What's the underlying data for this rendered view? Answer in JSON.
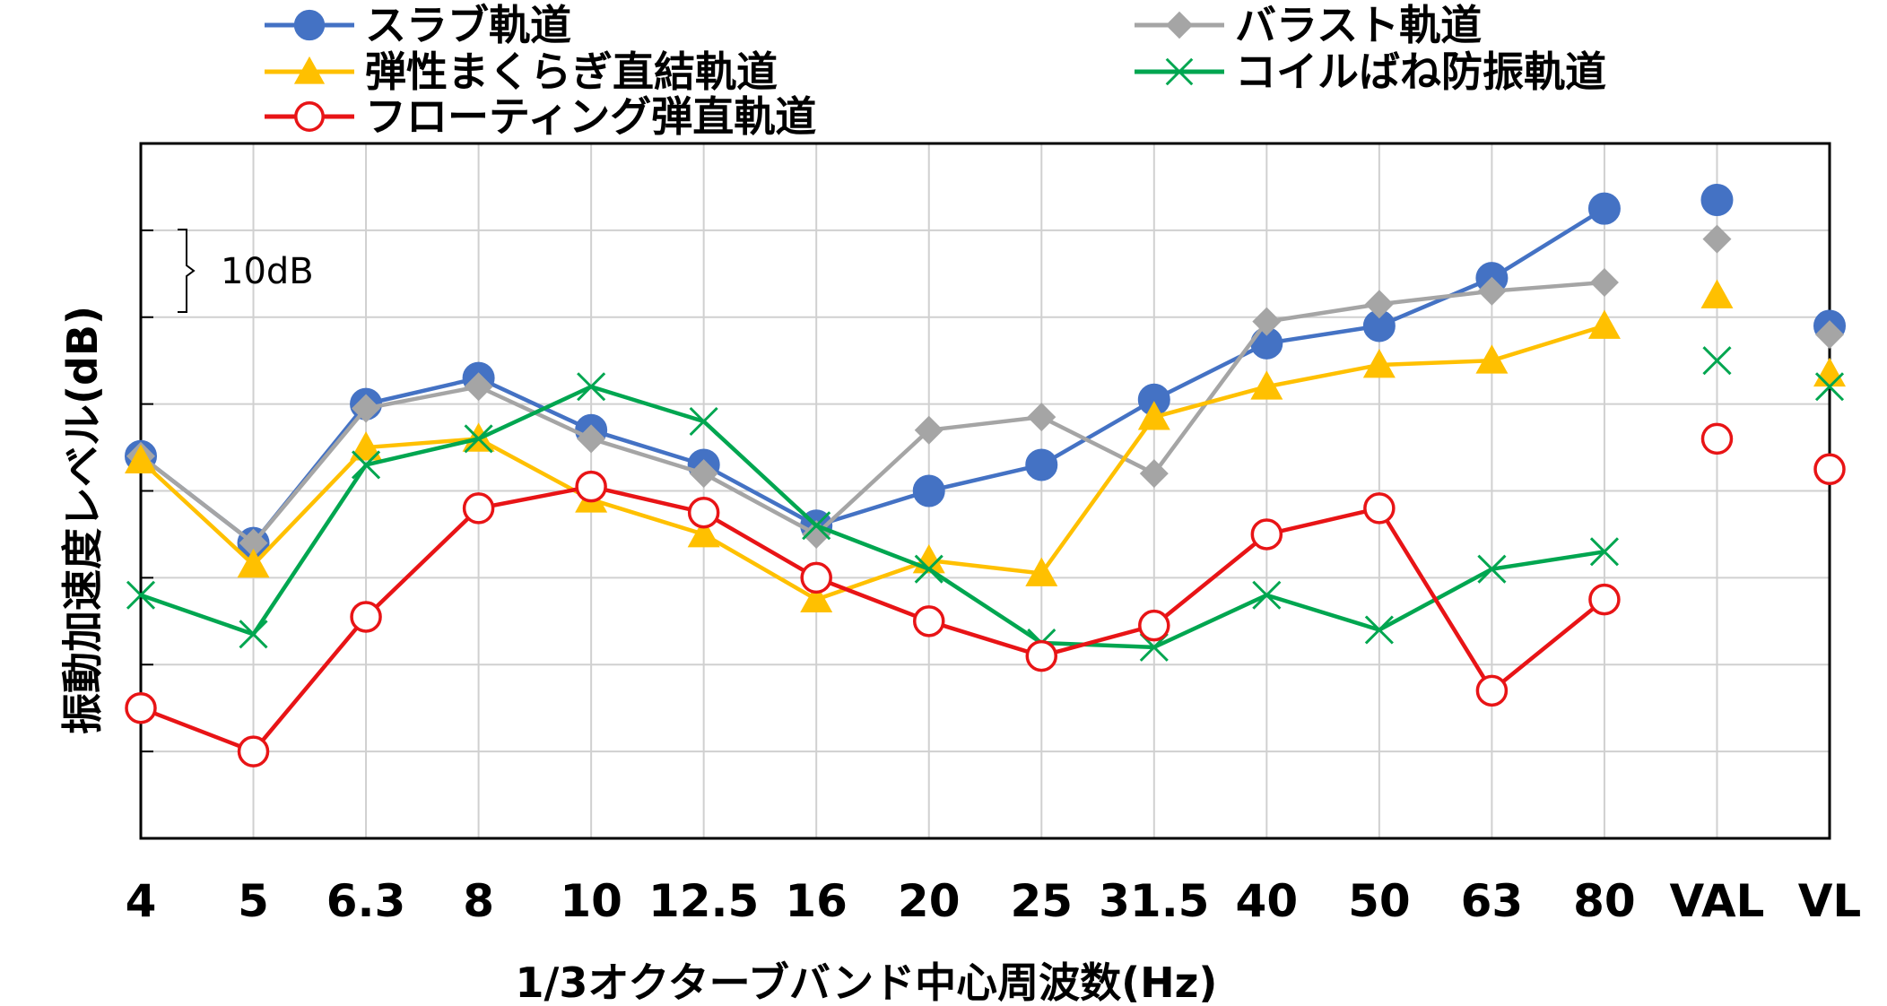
{
  "chart_data": {
    "type": "line",
    "xlabel": "1/3オクターブバンド中心周波数(Hz)",
    "ylabel": "振動加速度レベル(dB)",
    "scale_bar_label": "10dB",
    "categories": [
      "4",
      "5",
      "6.3",
      "8",
      "10",
      "12.5",
      "16",
      "20",
      "25",
      "31.5",
      "40",
      "50",
      "63",
      "80",
      "VAL",
      "VL"
    ],
    "ylim": [
      0,
      80
    ],
    "grid": true,
    "legend_position": "top",
    "series": [
      {
        "name": "スラブ軌道",
        "color": "#4472C4",
        "marker": "circle-filled",
        "values": [
          44,
          34,
          50,
          53,
          47,
          43,
          36,
          40,
          43,
          50.5,
          57,
          59,
          64.5,
          72.5,
          73.5,
          59
        ],
        "line_until_index": 13
      },
      {
        "name": "バラスト軌道",
        "color": "#A5A5A5",
        "marker": "diamond-filled",
        "values": [
          44,
          34,
          49.5,
          52,
          46,
          42,
          35,
          47,
          48.5,
          42,
          59.5,
          61.5,
          63,
          64,
          69,
          58
        ],
        "line_until_index": 13
      },
      {
        "name": "弾性まくらぎ直結軌道",
        "color": "#FFC000",
        "marker": "triangle-filled",
        "values": [
          43.5,
          31.5,
          45,
          46,
          39,
          35,
          27.5,
          32,
          30.5,
          48.5,
          52,
          54.5,
          55,
          59,
          62.5,
          53.5
        ],
        "line_until_index": 13
      },
      {
        "name": "コイルばね防振軌道",
        "color": "#00A650",
        "marker": "x",
        "values": [
          28,
          23.5,
          43,
          46,
          52,
          48,
          36,
          31,
          22.5,
          22,
          28,
          24,
          31,
          33,
          55,
          52
        ],
        "line_until_index": 13
      },
      {
        "name": "フローティング弾直軌道",
        "color": "#E81416",
        "marker": "circle-open",
        "values": [
          15,
          10,
          25.5,
          38,
          40.5,
          37.5,
          30,
          25,
          21,
          24.5,
          35,
          38,
          17,
          27.5,
          46,
          42.5
        ],
        "line_until_index": 13
      }
    ]
  }
}
